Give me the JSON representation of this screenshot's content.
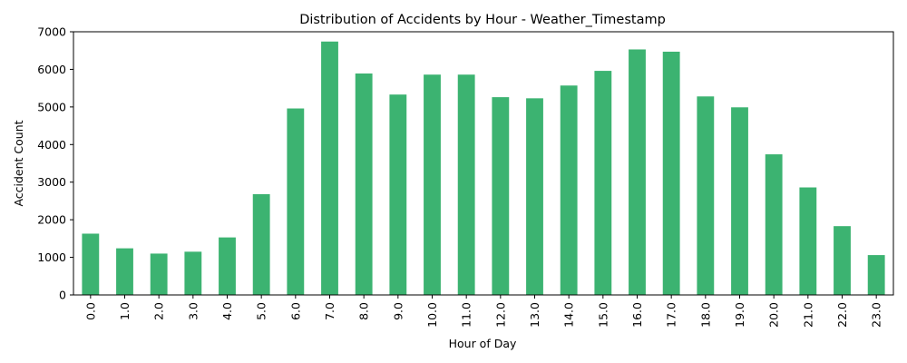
{
  "chart_data": {
    "type": "bar",
    "title": "Distribution of Accidents by Hour - Weather_Timestamp",
    "xlabel": "Hour of Day",
    "ylabel": "Accident Count",
    "categories": [
      "0.0",
      "1.0",
      "2.0",
      "3.0",
      "4.0",
      "5.0",
      "6.0",
      "7.0",
      "8.0",
      "9.0",
      "10.0",
      "11.0",
      "12.0",
      "13.0",
      "14.0",
      "15.0",
      "16.0",
      "17.0",
      "18.0",
      "19.0",
      "20.0",
      "21.0",
      "22.0",
      "23.0"
    ],
    "values": [
      1630,
      1240,
      1100,
      1150,
      1530,
      2680,
      4960,
      6740,
      5890,
      5330,
      5860,
      5860,
      5260,
      5230,
      5570,
      5960,
      6530,
      6470,
      5280,
      4990,
      3740,
      2860,
      1830,
      1060
    ],
    "ylim": [
      0,
      7000
    ],
    "yticks": [
      0,
      1000,
      2000,
      3000,
      4000,
      5000,
      6000,
      7000
    ],
    "grid": false,
    "bar_color": "#3cb371"
  }
}
